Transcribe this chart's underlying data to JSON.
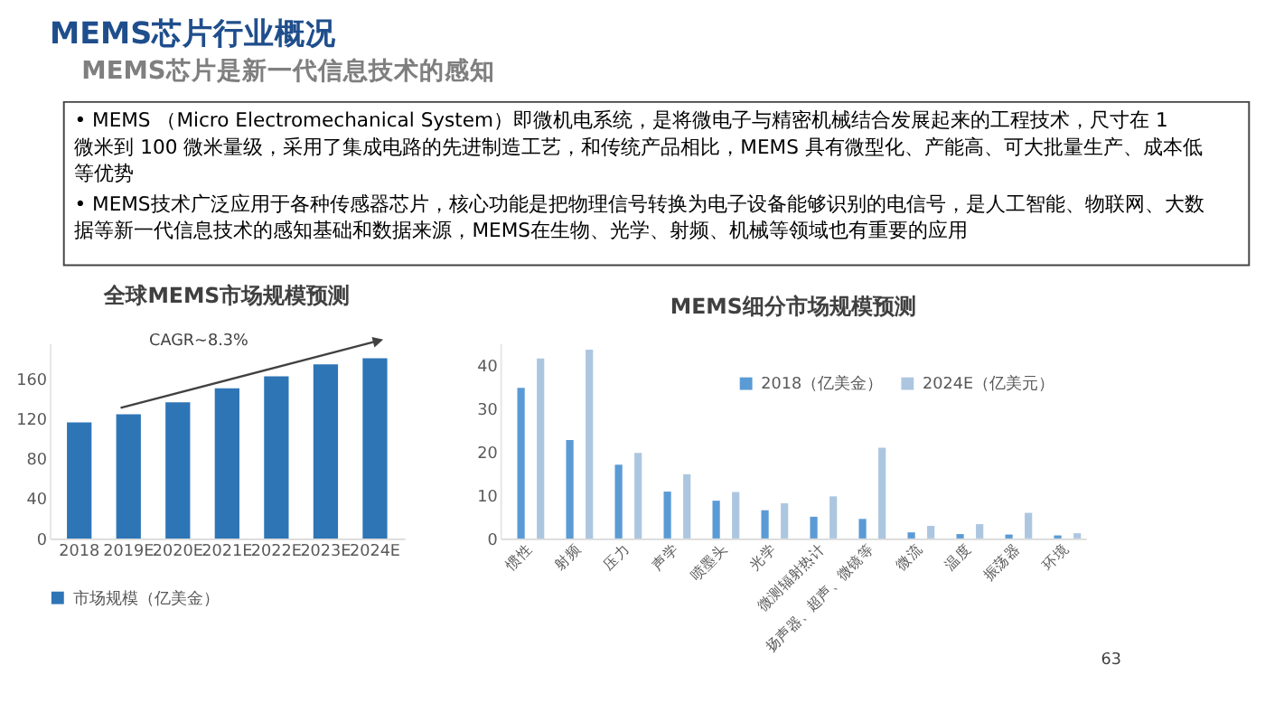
{
  "chart_data": [
    {
      "type": "other",
      "title": "MEMS芯片行业概况",
      "subtitle": "MEMS芯片是新一代信息技术的感知",
      "annotations": [
        "• MEMS （Micro Electromechanical System）即微机电系统，是将微电子与精密机械结合发展起来的工程技术，尺寸在 1 微米到 100 微米量级，采用了集成电路的先进制造工艺，和传统产品相比，MEMS 具有微型化、产能高、可大批量生产、成本低等优势",
        "• MEMS技术广泛应用于各种传感器芯片，核心功能是把物理信号转换为电子设备能够识别的电信号，是人工智能、物联网、大数据等新一代信息技术的感知基础和数据来源，MEMS在生物、光学、射频、机械等领域也有重要的应用"
      ]
    },
    {
      "type": "bar",
      "title": "全球MEMS市场规模预测",
      "categories": [
        "2018",
        "2019E",
        "2020E",
        "2021E",
        "2022E",
        "2023E",
        "2024E"
      ],
      "series": [
        {
          "name": "市场规模（亿美金）",
          "color": "#2e75b6",
          "values": [
            116,
            124,
            136,
            150,
            162,
            174,
            180
          ]
        }
      ],
      "ylim": [
        0,
        195
      ],
      "yticks": [
        0,
        40,
        80,
        120,
        160
      ],
      "legend": "bottom",
      "annotations": [
        "CAGR~8.3%"
      ]
    },
    {
      "type": "bar",
      "title": "MEMS细分市场规模预测",
      "categories": [
        "惯性",
        "射频",
        "压力",
        "声学",
        "喷墨头",
        "光学",
        "微测辐射热计",
        "扬声器、超声、微镜等",
        "微流",
        "温度",
        "振荡器",
        "环境"
      ],
      "series": [
        {
          "name": "2018（亿美金）",
          "color": "#5b9bd5",
          "values": [
            34.7,
            22.7,
            17,
            10.8,
            8.7,
            6.5,
            5,
            4.5,
            1.4,
            1,
            0.9,
            0.7
          ]
        },
        {
          "name": "2024E（亿美元）",
          "color": "#adc6e0",
          "values": [
            41.5,
            43.5,
            19.7,
            14.8,
            10.7,
            8.1,
            9.7,
            20.9,
            2.9,
            3.3,
            5.9,
            1.2
          ]
        }
      ],
      "ylim": [
        0,
        45
      ],
      "yticks": [
        0,
        10,
        20,
        30,
        40
      ],
      "legend": "top right",
      "annotations": [
        "63"
      ]
    }
  ]
}
